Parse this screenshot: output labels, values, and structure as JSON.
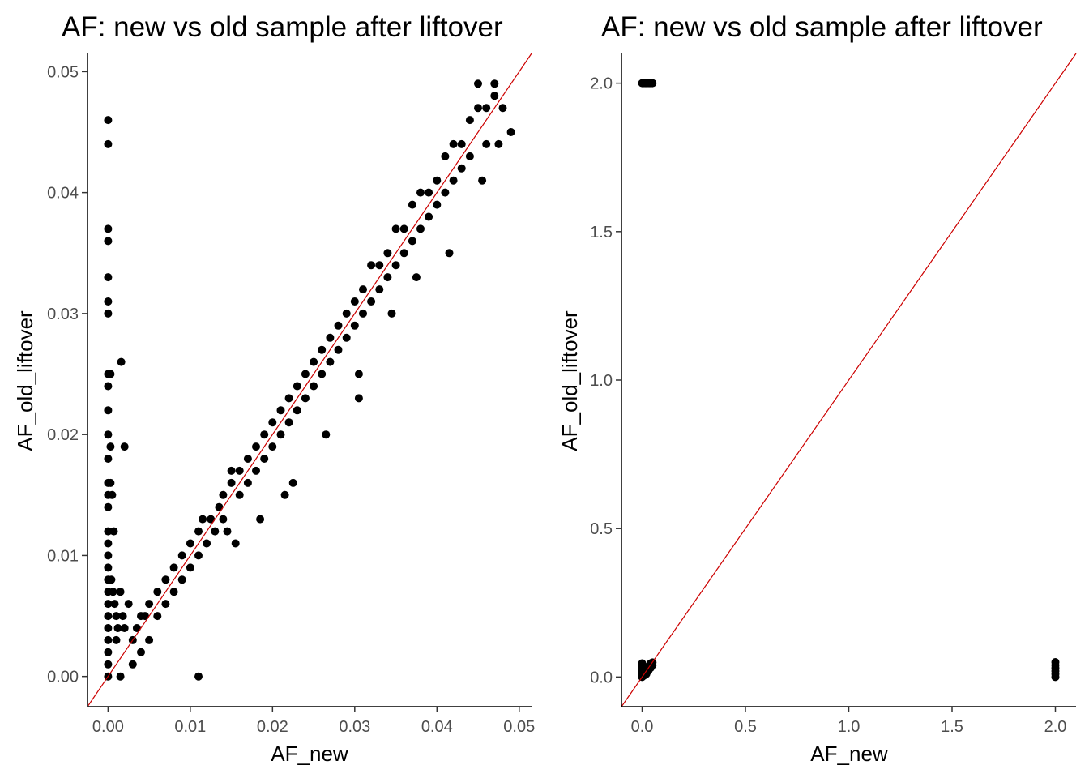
{
  "chart_data": [
    {
      "type": "scatter",
      "title": "AF: new vs old sample after liftover",
      "xlabel": "AF_new",
      "ylabel": "AF_old_liftover",
      "xlim": [
        -0.0025,
        0.0515
      ],
      "ylim": [
        -0.0025,
        0.0515
      ],
      "xticks": [
        0,
        0.01,
        0.02,
        0.03,
        0.04,
        0.05
      ],
      "yticks": [
        0,
        0.01,
        0.02,
        0.03,
        0.04,
        0.05
      ],
      "xtick_labels": [
        "0.00",
        "0.01",
        "0.02",
        "0.03",
        "0.04",
        "0.05"
      ],
      "ytick_labels": [
        "0.00",
        "0.01",
        "0.02",
        "0.03",
        "0.04",
        "0.05"
      ],
      "grid": false,
      "point_color": "#000000",
      "reference_line": {
        "slope": 1,
        "intercept": 0,
        "color": "#cc0000"
      },
      "series": [
        {
          "points": [
            [
              0,
              0.046
            ],
            [
              0,
              0.044
            ],
            [
              0,
              0.037
            ],
            [
              0,
              0.036
            ],
            [
              0,
              0.033
            ],
            [
              0,
              0.031
            ],
            [
              0,
              0.03
            ],
            [
              0,
              0.025
            ],
            [
              0,
              0.024
            ],
            [
              0,
              0.022
            ],
            [
              0,
              0.02
            ],
            [
              0,
              0.018
            ],
            [
              0,
              0.016
            ],
            [
              0,
              0.015
            ],
            [
              0,
              0.014
            ],
            [
              0,
              0.012
            ],
            [
              0,
              0.011
            ],
            [
              0,
              0.01
            ],
            [
              0,
              0.009
            ],
            [
              0,
              0.008
            ],
            [
              0,
              0.007
            ],
            [
              0,
              0.006
            ],
            [
              0,
              0.005
            ],
            [
              0,
              0.004
            ],
            [
              0,
              0.003
            ],
            [
              0,
              0.002
            ],
            [
              0,
              0.001
            ],
            [
              0,
              0.0
            ],
            [
              0.0003,
              0.025
            ],
            [
              0.0003,
              0.019
            ],
            [
              0.0003,
              0.016
            ],
            [
              0.0005,
              0.015
            ],
            [
              0.0007,
              0.012
            ],
            [
              0.0004,
              0.008
            ],
            [
              0.0006,
              0.007
            ],
            [
              0.0008,
              0.006
            ],
            [
              0.001,
              0.005
            ],
            [
              0.0012,
              0.004
            ],
            [
              0.0016,
              0.026
            ],
            [
              0.002,
              0.019
            ],
            [
              0.0015,
              0.007
            ],
            [
              0.0018,
              0.005
            ],
            [
              0.001,
              0.003
            ],
            [
              0.0015,
              0.0
            ],
            [
              0.002,
              0.004
            ],
            [
              0.0025,
              0.006
            ],
            [
              0.003,
              0.003
            ],
            [
              0.0035,
              0.004
            ],
            [
              0.004,
              0.005
            ],
            [
              0.0045,
              0.005
            ],
            [
              0.003,
              0.001
            ],
            [
              0.004,
              0.002
            ],
            [
              0.005,
              0.006
            ],
            [
              0.005,
              0.003
            ],
            [
              0.006,
              0.007
            ],
            [
              0.006,
              0.005
            ],
            [
              0.007,
              0.008
            ],
            [
              0.007,
              0.006
            ],
            [
              0.008,
              0.009
            ],
            [
              0.008,
              0.007
            ],
            [
              0.009,
              0.01
            ],
            [
              0.009,
              0.008
            ],
            [
              0.01,
              0.011
            ],
            [
              0.01,
              0.009
            ],
            [
              0.011,
              0.01
            ],
            [
              0.011,
              0.012
            ],
            [
              0.0115,
              0.013
            ],
            [
              0.012,
              0.011
            ],
            [
              0.0135,
              0.014
            ],
            [
              0.013,
              0.012
            ],
            [
              0.014,
              0.015
            ],
            [
              0.014,
              0.013
            ],
            [
              0.015,
              0.016
            ],
            [
              0.015,
              0.017
            ],
            [
              0.016,
              0.017
            ],
            [
              0.016,
              0.015
            ],
            [
              0.017,
              0.018
            ],
            [
              0.017,
              0.016
            ],
            [
              0.018,
              0.019
            ],
            [
              0.018,
              0.017
            ],
            [
              0.019,
              0.02
            ],
            [
              0.019,
              0.018
            ],
            [
              0.02,
              0.021
            ],
            [
              0.02,
              0.019
            ],
            [
              0.021,
              0.022
            ],
            [
              0.021,
              0.02
            ],
            [
              0.022,
              0.023
            ],
            [
              0.022,
              0.021
            ],
            [
              0.023,
              0.024
            ],
            [
              0.023,
              0.022
            ],
            [
              0.024,
              0.025
            ],
            [
              0.024,
              0.023
            ],
            [
              0.025,
              0.026
            ],
            [
              0.025,
              0.024
            ],
            [
              0.026,
              0.027
            ],
            [
              0.026,
              0.025
            ],
            [
              0.027,
              0.028
            ],
            [
              0.027,
              0.026
            ],
            [
              0.028,
              0.029
            ],
            [
              0.028,
              0.027
            ],
            [
              0.029,
              0.03
            ],
            [
              0.029,
              0.028
            ],
            [
              0.03,
              0.031
            ],
            [
              0.03,
              0.029
            ],
            [
              0.031,
              0.032
            ],
            [
              0.031,
              0.03
            ],
            [
              0.032,
              0.034
            ],
            [
              0.032,
              0.031
            ],
            [
              0.033,
              0.034
            ],
            [
              0.033,
              0.032
            ],
            [
              0.034,
              0.035
            ],
            [
              0.034,
              0.033
            ],
            [
              0.035,
              0.037
            ],
            [
              0.035,
              0.034
            ],
            [
              0.036,
              0.037
            ],
            [
              0.036,
              0.035
            ],
            [
              0.037,
              0.039
            ],
            [
              0.037,
              0.036
            ],
            [
              0.038,
              0.04
            ],
            [
              0.038,
              0.037
            ],
            [
              0.039,
              0.04
            ],
            [
              0.039,
              0.038
            ],
            [
              0.04,
              0.041
            ],
            [
              0.04,
              0.039
            ],
            [
              0.041,
              0.043
            ],
            [
              0.041,
              0.04
            ],
            [
              0.042,
              0.044
            ],
            [
              0.042,
              0.041
            ],
            [
              0.043,
              0.044
            ],
            [
              0.043,
              0.042
            ],
            [
              0.044,
              0.046
            ],
            [
              0.044,
              0.043
            ],
            [
              0.045,
              0.047
            ],
            [
              0.045,
              0.049
            ],
            [
              0.046,
              0.047
            ],
            [
              0.046,
              0.044
            ],
            [
              0.047,
              0.049
            ],
            [
              0.047,
              0.048
            ],
            [
              0.048,
              0.047
            ],
            [
              0.049,
              0.045
            ],
            [
              0.0125,
              0.013
            ],
            [
              0.0145,
              0.012
            ],
            [
              0.0155,
              0.011
            ],
            [
              0.0185,
              0.013
            ],
            [
              0.0215,
              0.015
            ],
            [
              0.0225,
              0.016
            ],
            [
              0.0265,
              0.02
            ],
            [
              0.0305,
              0.023
            ],
            [
              0.0305,
              0.025
            ],
            [
              0.0345,
              0.03
            ],
            [
              0.0375,
              0.033
            ],
            [
              0.0415,
              0.035
            ],
            [
              0.0455,
              0.041
            ],
            [
              0.0475,
              0.044
            ],
            [
              0.011,
              0.0
            ]
          ]
        }
      ]
    },
    {
      "type": "scatter",
      "title": "AF: new vs old sample after liftover",
      "xlabel": "AF_new",
      "ylabel": "AF_old_liftover",
      "xlim": [
        -0.1,
        2.1
      ],
      "ylim": [
        -0.1,
        2.1
      ],
      "xticks": [
        0,
        0.5,
        1.0,
        1.5,
        2.0
      ],
      "yticks": [
        0,
        0.5,
        1.0,
        1.5,
        2.0
      ],
      "xtick_labels": [
        "0.0",
        "0.5",
        "1.0",
        "1.5",
        "2.0"
      ],
      "ytick_labels": [
        "0.0",
        "0.5",
        "1.0",
        "1.5",
        "2.0"
      ],
      "grid": false,
      "point_color": "#000000",
      "reference_line": {
        "slope": 1,
        "intercept": 0,
        "color": "#cc0000"
      },
      "series": [
        {
          "points": [
            [
              0,
              2.0
            ],
            [
              0.005,
              2.0
            ],
            [
              0.01,
              2.0
            ],
            [
              0.015,
              2.0
            ],
            [
              0.02,
              2.0
            ],
            [
              0.025,
              2.0
            ],
            [
              0.03,
              2.0
            ],
            [
              0.035,
              2.0
            ],
            [
              0.04,
              2.0
            ],
            [
              0.045,
              2.0
            ],
            [
              0.05,
              2.0
            ],
            [
              0,
              0.0
            ],
            [
              0,
              0.01
            ],
            [
              0,
              0.02
            ],
            [
              0,
              0.03
            ],
            [
              0,
              0.04
            ],
            [
              0,
              0.046
            ],
            [
              0.01,
              0.005
            ],
            [
              0.01,
              0.015
            ],
            [
              0.02,
              0.01
            ],
            [
              0.02,
              0.025
            ],
            [
              0.03,
              0.02
            ],
            [
              0.03,
              0.035
            ],
            [
              0.04,
              0.03
            ],
            [
              0.04,
              0.045
            ],
            [
              0.05,
              0.04
            ],
            [
              0.05,
              0.049
            ],
            [
              0.045,
              0.047
            ],
            [
              2.0,
              0.0
            ],
            [
              2.0,
              0.01
            ],
            [
              2.0,
              0.02
            ],
            [
              2.0,
              0.03
            ],
            [
              2.0,
              0.04
            ],
            [
              2.0,
              0.05
            ]
          ]
        }
      ]
    }
  ]
}
